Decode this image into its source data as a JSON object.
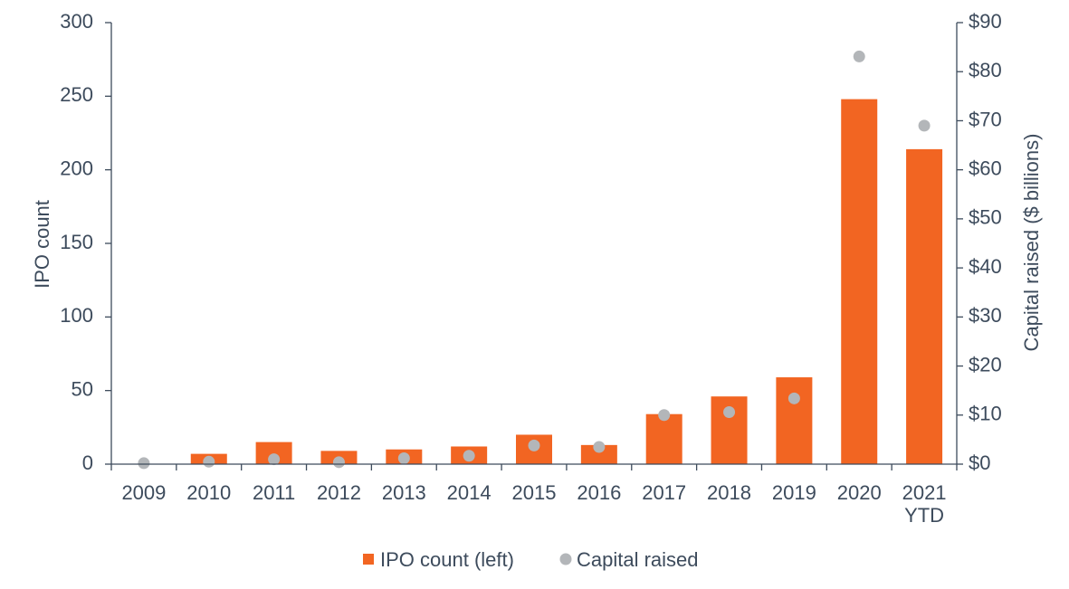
{
  "chart_data": {
    "type": "bar",
    "categories": [
      "2009",
      "2010",
      "2011",
      "2012",
      "2013",
      "2014",
      "2015",
      "2016",
      "2017",
      "2018",
      "2019",
      "2020",
      "2021\nYTD"
    ],
    "series": [
      {
        "name": "IPO count (left)",
        "type": "bar",
        "axis": "left",
        "color": "#f26522",
        "values": [
          0,
          7,
          15,
          9,
          10,
          12,
          20,
          13,
          34,
          46,
          59,
          248,
          214
        ]
      },
      {
        "name": "Capital raised",
        "type": "scatter",
        "axis": "right",
        "color": "#b3b6b9",
        "values": [
          0.2,
          0.5,
          1.0,
          0.4,
          1.2,
          1.7,
          3.8,
          3.5,
          10.0,
          10.6,
          13.4,
          83.1,
          69.0
        ]
      }
    ],
    "y_left": {
      "label": "IPO count",
      "ylim": [
        0,
        300
      ],
      "ticks": [
        0,
        50,
        100,
        150,
        200,
        250,
        300
      ],
      "tick_labels": [
        "0",
        "50",
        "100",
        "150",
        "200",
        "250",
        "300"
      ]
    },
    "y_right": {
      "label": "Capital raised ($ billions)",
      "ylim": [
        0,
        90
      ],
      "ticks": [
        0,
        10,
        20,
        30,
        40,
        50,
        60,
        70,
        80,
        90
      ],
      "tick_labels": [
        "$0",
        "$10",
        "$20",
        "$30",
        "$40",
        "$50",
        "$60",
        "$70",
        "$80",
        "$90"
      ]
    },
    "xlabel": "",
    "title": "",
    "grid": false,
    "legend_position": "bottom-center"
  }
}
